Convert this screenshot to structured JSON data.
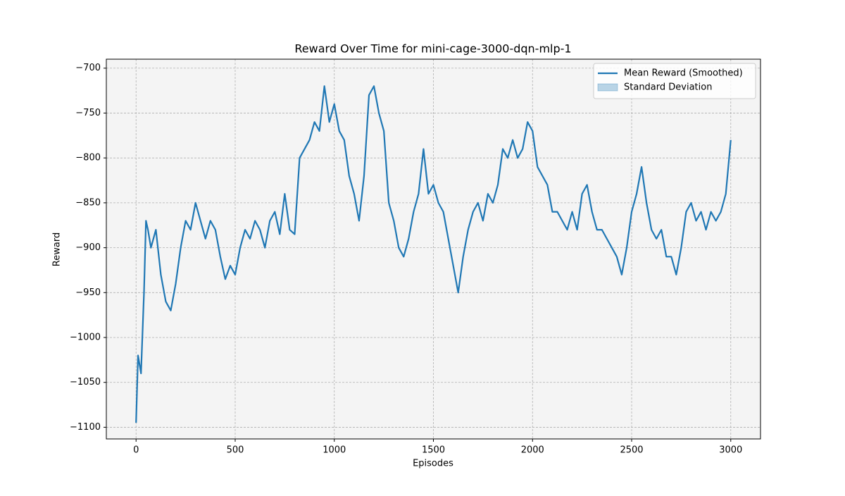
{
  "chart_data": {
    "type": "line",
    "title": "Reward Over Time for mini-cage-3000-dqn-mlp-1",
    "x_label": "Episodes",
    "y_label": "Reward",
    "x": [
      0,
      10,
      25,
      40,
      50,
      60,
      75,
      100,
      125,
      150,
      175,
      200,
      225,
      250,
      275,
      300,
      325,
      350,
      375,
      400,
      425,
      450,
      475,
      500,
      525,
      550,
      575,
      600,
      625,
      650,
      675,
      700,
      725,
      750,
      775,
      800,
      825,
      850,
      875,
      900,
      925,
      950,
      975,
      1000,
      1025,
      1050,
      1075,
      1100,
      1125,
      1150,
      1175,
      1200,
      1225,
      1250,
      1275,
      1300,
      1325,
      1350,
      1375,
      1400,
      1425,
      1450,
      1475,
      1500,
      1525,
      1550,
      1575,
      1600,
      1625,
      1650,
      1675,
      1700,
      1725,
      1750,
      1775,
      1800,
      1825,
      1850,
      1875,
      1900,
      1925,
      1950,
      1975,
      2000,
      2025,
      2050,
      2075,
      2100,
      2125,
      2150,
      2175,
      2200,
      2225,
      2250,
      2275,
      2300,
      2325,
      2350,
      2375,
      2400,
      2425,
      2450,
      2475,
      2500,
      2525,
      2550,
      2575,
      2600,
      2625,
      2650,
      2675,
      2700,
      2725,
      2750,
      2775,
      2800,
      2825,
      2850,
      2875,
      2900,
      2925,
      2950,
      2975,
      3000
    ],
    "series": [
      {
        "name": "Mean Reward (Smoothed)",
        "color": "#1f77b4",
        "values": [
          -1095,
          -1020,
          -1040,
          -950,
          -870,
          -880,
          -900,
          -880,
          -930,
          -960,
          -970,
          -940,
          -900,
          -870,
          -880,
          -850,
          -870,
          -890,
          -870,
          -880,
          -910,
          -935,
          -920,
          -930,
          -900,
          -880,
          -890,
          -870,
          -880,
          -900,
          -870,
          -860,
          -885,
          -840,
          -880,
          -885,
          -800,
          -790,
          -780,
          -760,
          -770,
          -720,
          -760,
          -740,
          -770,
          -780,
          -820,
          -840,
          -870,
          -820,
          -730,
          -720,
          -750,
          -770,
          -850,
          -870,
          -900,
          -910,
          -890,
          -860,
          -840,
          -790,
          -840,
          -830,
          -850,
          -860,
          -890,
          -920,
          -950,
          -910,
          -880,
          -860,
          -850,
          -870,
          -840,
          -850,
          -830,
          -790,
          -800,
          -780,
          -800,
          -790,
          -760,
          -770,
          -810,
          -820,
          -830,
          -860,
          -860,
          -870,
          -880,
          -860,
          -880,
          -840,
          -830,
          -860,
          -880,
          -880,
          -890,
          -900,
          -910,
          -930,
          -900,
          -860,
          -840,
          -810,
          -850,
          -880,
          -890,
          -880,
          -910,
          -910,
          -930,
          -900,
          -860,
          -850,
          -870,
          -860,
          -880,
          -860,
          -870,
          -860,
          -840,
          -780
        ]
      }
    ],
    "band": {
      "name": "Standard Deviation",
      "color": "#1f77b4"
    },
    "xlim": [
      -150,
      3150
    ],
    "ylim": [
      -1113,
      -690
    ],
    "xticks": [
      0,
      500,
      1000,
      1500,
      2000,
      2500,
      3000
    ],
    "yticks": [
      {
        "value": -1100,
        "label": "−1100"
      },
      {
        "value": -1050,
        "label": "−1050"
      },
      {
        "value": -1000,
        "label": "−1000"
      },
      {
        "value": -950,
        "label": "−950"
      },
      {
        "value": -900,
        "label": "−900"
      },
      {
        "value": -850,
        "label": "−850"
      },
      {
        "value": -800,
        "label": "−800"
      },
      {
        "value": -750,
        "label": "−750"
      },
      {
        "value": -700,
        "label": "−700"
      }
    ],
    "grid": true,
    "legend": "upper right"
  }
}
